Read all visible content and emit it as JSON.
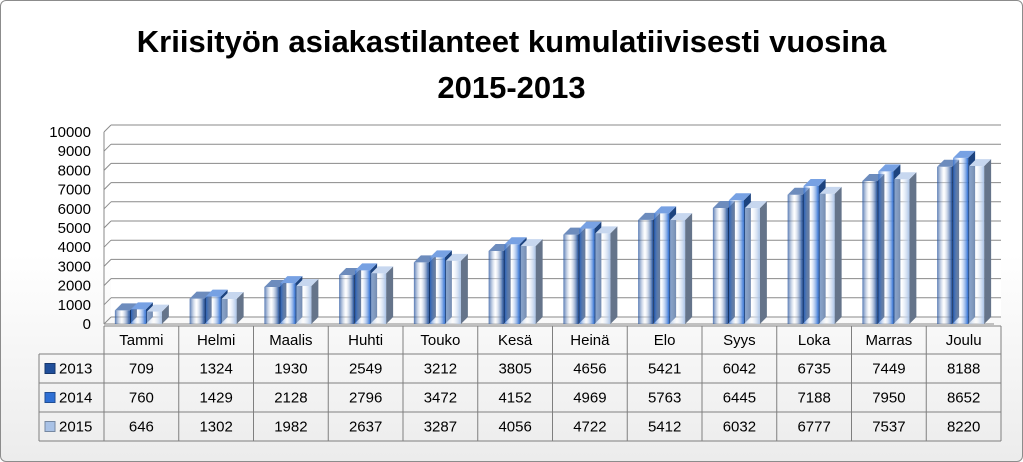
{
  "chart_data": {
    "type": "bar",
    "title": [
      "Kriisityön asiakastilanteet kumulatiivisesti vuosina",
      "2015-2013"
    ],
    "categories": [
      "Tammi",
      "Helmi",
      "Maalis",
      "Huhti",
      "Touko",
      "Kesä",
      "Heinä",
      "Elo",
      "Syys",
      "Loka",
      "Marras",
      "Joulu"
    ],
    "series": [
      {
        "name": "2013",
        "color": "#1f4e9a",
        "values": [
          709,
          1324,
          1930,
          2549,
          3212,
          3805,
          4656,
          5421,
          6042,
          6735,
          7449,
          8188
        ]
      },
      {
        "name": "2014",
        "color": "#2e6fd4",
        "values": [
          760,
          1429,
          2128,
          2796,
          3472,
          4152,
          4969,
          5763,
          6445,
          7188,
          7950,
          8652
        ]
      },
      {
        "name": "2015",
        "color": "#a9c2e6",
        "values": [
          646,
          1302,
          1982,
          2637,
          3287,
          4056,
          4722,
          5412,
          6032,
          6777,
          7537,
          8220
        ]
      }
    ],
    "ylim": [
      0,
      10000
    ],
    "yticks": [
      "0",
      "1000",
      "2000",
      "3000",
      "4000",
      "5000",
      "6000",
      "7000",
      "8000",
      "9000",
      "10000"
    ],
    "grid": true,
    "legend": "data-table",
    "style": "3d-column"
  }
}
